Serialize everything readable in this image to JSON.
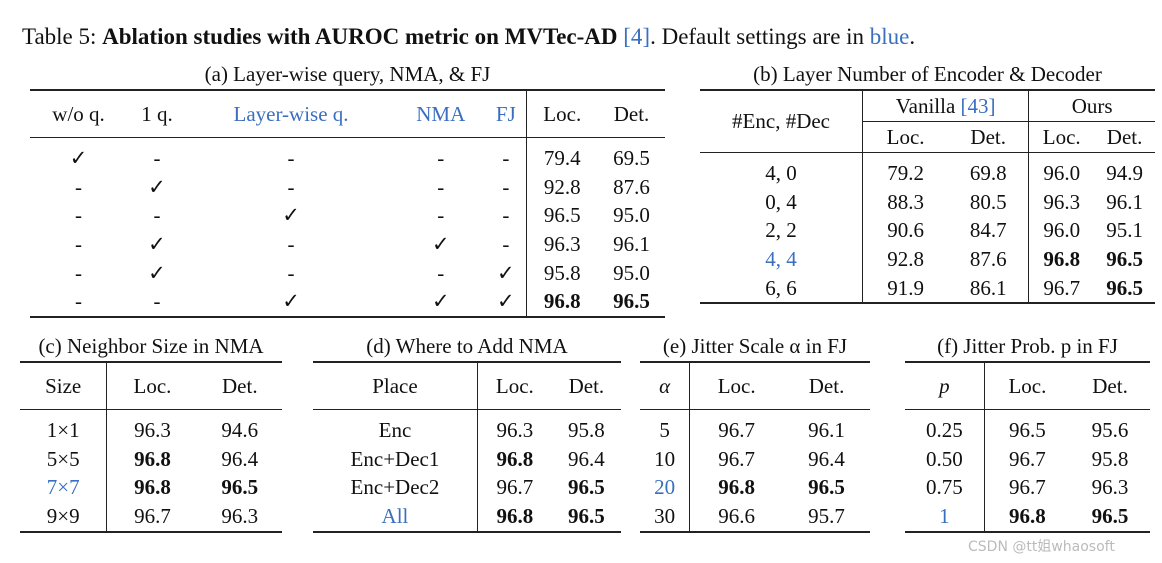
{
  "caption": {
    "label": "Table 5:",
    "bold": "Ablation studies with AUROC metric on MVTec-AD",
    "ref": "[4]",
    "rest": ". Default settings are in",
    "blue": "blue",
    "end": "."
  },
  "tables": [
    {
      "title": "(a) Layer-wise query, NMA, & FJ",
      "header": [
        "w/o q.",
        "1 q.",
        "Layer-wise q.",
        "NMA",
        "FJ",
        "Loc.",
        "Det."
      ],
      "rows": [
        [
          "✓",
          "-",
          "-",
          "-",
          "-",
          "79.4",
          "69.5"
        ],
        [
          "-",
          "✓",
          "-",
          "-",
          "-",
          "92.8",
          "87.6"
        ],
        [
          "-",
          "-",
          "✓",
          "-",
          "-",
          "96.5",
          "95.0"
        ],
        [
          "-",
          "✓",
          "-",
          "✓",
          "-",
          "96.3",
          "96.1"
        ],
        [
          "-",
          "✓",
          "-",
          "-",
          "✓",
          "95.8",
          "95.0"
        ],
        [
          "-",
          "-",
          "✓",
          "✓",
          "✓",
          "96.8",
          "96.5"
        ]
      ]
    },
    {
      "title": "(b) Layer Number of Encoder & Decoder",
      "groups": [
        {
          "name": "Vanilla",
          "ref": "[43]"
        },
        {
          "name": "Ours"
        }
      ],
      "header": [
        "#Enc, #Dec",
        "Loc.",
        "Det.",
        "Loc.",
        "Det."
      ],
      "rows": [
        [
          "4, 0",
          "79.2",
          "69.8",
          "96.0",
          "94.9"
        ],
        [
          "0, 4",
          "88.3",
          "80.5",
          "96.3",
          "96.1"
        ],
        [
          "2, 2",
          "90.6",
          "84.7",
          "96.0",
          "95.1"
        ],
        [
          "4, 4",
          "92.8",
          "87.6",
          "96.8",
          "96.5"
        ],
        [
          "6, 6",
          "91.9",
          "86.1",
          "96.7",
          "96.5"
        ]
      ]
    },
    {
      "title": "(c) Neighbor Size in NMA",
      "header": [
        "Size",
        "Loc.",
        "Det."
      ],
      "rows": [
        [
          "1×1",
          "96.3",
          "94.6"
        ],
        [
          "5×5",
          "96.8",
          "96.4"
        ],
        [
          "7×7",
          "96.8",
          "96.5"
        ],
        [
          "9×9",
          "96.7",
          "96.3"
        ]
      ]
    },
    {
      "title": "(d) Where to Add NMA",
      "header": [
        "Place",
        "Loc.",
        "Det."
      ],
      "rows": [
        [
          "Enc",
          "96.3",
          "95.8"
        ],
        [
          "Enc+Dec1",
          "96.8",
          "96.4"
        ],
        [
          "Enc+Dec2",
          "96.7",
          "96.5"
        ],
        [
          "All",
          "96.8",
          "96.5"
        ]
      ]
    },
    {
      "title": "(e) Jitter Scale α in FJ",
      "header": [
        "α",
        "Loc.",
        "Det."
      ],
      "rows": [
        [
          "5",
          "96.7",
          "96.1"
        ],
        [
          "10",
          "96.7",
          "96.4"
        ],
        [
          "20",
          "96.8",
          "96.5"
        ],
        [
          "30",
          "96.6",
          "95.7"
        ]
      ]
    },
    {
      "title": "(f) Jitter Prob. p in FJ",
      "header": [
        "p",
        "Loc.",
        "Det."
      ],
      "rows": [
        [
          "0.25",
          "96.5",
          "95.6"
        ],
        [
          "0.50",
          "96.7",
          "95.8"
        ],
        [
          "0.75",
          "96.7",
          "96.3"
        ],
        [
          "1",
          "96.8",
          "96.5"
        ]
      ]
    }
  ],
  "watermark": "CSDN @tt姐whaosoft"
}
